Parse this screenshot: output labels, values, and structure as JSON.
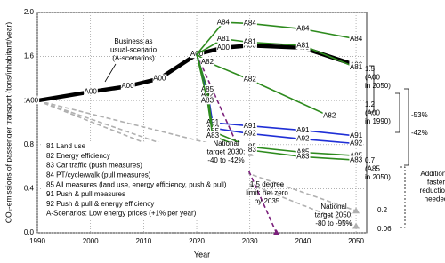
{
  "chart_data": {
    "type": "line",
    "xlabel": "Year",
    "ylabel": "CO₂-emissions of passenger transport (tons/inhabitant/year)",
    "xlim": [
      1990,
      2052
    ],
    "ylim": [
      0,
      2
    ],
    "xticks": [
      1990,
      2000,
      2010,
      2020,
      2030,
      2040,
      2050
    ],
    "yticks": [
      {
        "value": 0,
        "label": "0.0"
      },
      0.4,
      0.8,
      1.2,
      1.6,
      {
        "value": 2,
        "label": "2.0"
      }
    ],
    "grid": true,
    "series": [
      {
        "name": "A00",
        "color": "#000000",
        "x": [
          1990,
          2000,
          2007,
          2013,
          2020,
          2025,
          2030,
          2040,
          2050
        ],
        "values": [
          1.2,
          1.28,
          1.33,
          1.4,
          1.62,
          1.68,
          1.7,
          1.68,
          1.52
        ]
      },
      {
        "name": "A84",
        "color": "#2e8b1e",
        "x": [
          2020,
          2025,
          2030,
          2040,
          2050
        ],
        "values": [
          1.62,
          1.91,
          1.9,
          1.85,
          1.76
        ]
      },
      {
        "name": "A81",
        "color": "#2e8b1e",
        "x": [
          2020,
          2025,
          2030,
          2040,
          2050
        ],
        "values": [
          1.62,
          1.76,
          1.73,
          1.7,
          1.5
        ]
      },
      {
        "name": "A82",
        "color": "#2e8b1e",
        "x": [
          2020,
          2022,
          2030,
          2045
        ],
        "values": [
          1.62,
          1.55,
          1.39,
          1.06
        ]
      },
      {
        "name": "A91",
        "color": "#1f2fd6",
        "x": [
          2020,
          2022,
          2023,
          2030,
          2040,
          2050
        ],
        "values": [
          1.62,
          1.3,
          1.0,
          0.97,
          0.93,
          0.88
        ]
      },
      {
        "name": "A92",
        "color": "#1f2fd6",
        "x": [
          2020,
          2022,
          2023,
          2030,
          2040,
          2050
        ],
        "values": [
          1.62,
          1.25,
          0.95,
          0.9,
          0.85,
          0.81
        ]
      },
      {
        "name": "A85",
        "color": "#2e8b1e",
        "x": [
          2020,
          2022,
          2023,
          2030,
          2040,
          2050
        ],
        "values": [
          1.62,
          1.3,
          0.92,
          0.78,
          0.73,
          0.7
        ]
      },
      {
        "name": "A83",
        "color": "#2e8b1e",
        "x": [
          2020,
          2022,
          2023,
          2030,
          2040,
          2050
        ],
        "values": [
          1.62,
          1.2,
          0.88,
          0.75,
          0.69,
          0.66
        ]
      }
    ],
    "reference_lines": [
      {
        "color": "#b0b0b0",
        "x": [
          1990,
          2030
        ],
        "values": [
          1.2,
          0.72
        ]
      },
      {
        "color": "#b0b0b0",
        "x": [
          1990,
          2050
        ],
        "values": [
          1.2,
          0.2
        ]
      },
      {
        "color": "#b0b0b0",
        "x": [
          1990,
          2050
        ],
        "values": [
          1.2,
          0.06
        ]
      },
      {
        "color": "#7b1f7b",
        "x": [
          2020,
          2035
        ],
        "values": [
          1.62,
          0
        ]
      }
    ],
    "notes": [
      {
        "text": "81 Land use",
        "color": "#2e8b1e"
      },
      {
        "text": "82 Energy efficiency",
        "color": "#2e8b1e"
      },
      {
        "text": "83 Car traffic (push measures)",
        "color": "#2e8b1e"
      },
      {
        "text": "84 PT/cycle/walk (pull measures)",
        "color": "#2e8b1e"
      },
      {
        "text": "85 All measures (land use, energy efficiency, push & pull)",
        "color": "#2e8b1e"
      },
      {
        "text": "91 Push & pull measures",
        "color": "#1f2fd6"
      },
      {
        "text": "92 Push & pull & energy efficiency",
        "color": "#1f2fd6"
      },
      {
        "text": "A-Scenarios: Low energy prices (+1% per year)",
        "color": "#000000"
      }
    ],
    "annotations": [
      {
        "lines": [
          "Business as",
          "usual-scenario",
          "(A-scenarios)"
        ],
        "color": "#000000"
      },
      {
        "lines": [
          "National",
          "target 2030:",
          "-40 to -42%"
        ],
        "color": "#000000"
      },
      {
        "lines": [
          "1.5 degree",
          "limit: net zero",
          "by 2035"
        ],
        "color": "#7b1f7b"
      },
      {
        "lines": [
          "National",
          "target 2050:",
          "-80 to -95%"
        ],
        "color": "#000000"
      },
      {
        "lines": [
          "1.5",
          "(A00",
          "in 2050)"
        ],
        "color": "#000000"
      },
      {
        "lines": [
          "1.2",
          "(A00",
          "in 1990)"
        ],
        "color": "#000000"
      },
      {
        "lines": [
          "0.7",
          "(A85",
          "in 2050)"
        ],
        "color": "#000000"
      },
      {
        "lines": [
          "0.2"
        ],
        "color": "#000000"
      },
      {
        "lines": [
          "0.06"
        ],
        "color": "#000000"
      },
      {
        "lines": [
          "-53%"
        ],
        "color": "#000000"
      },
      {
        "lines": [
          "-42%"
        ],
        "color": "#000000"
      },
      {
        "lines": [
          "Additional",
          "faster",
          "reductions",
          "needed"
        ],
        "color": "#000000"
      }
    ]
  }
}
